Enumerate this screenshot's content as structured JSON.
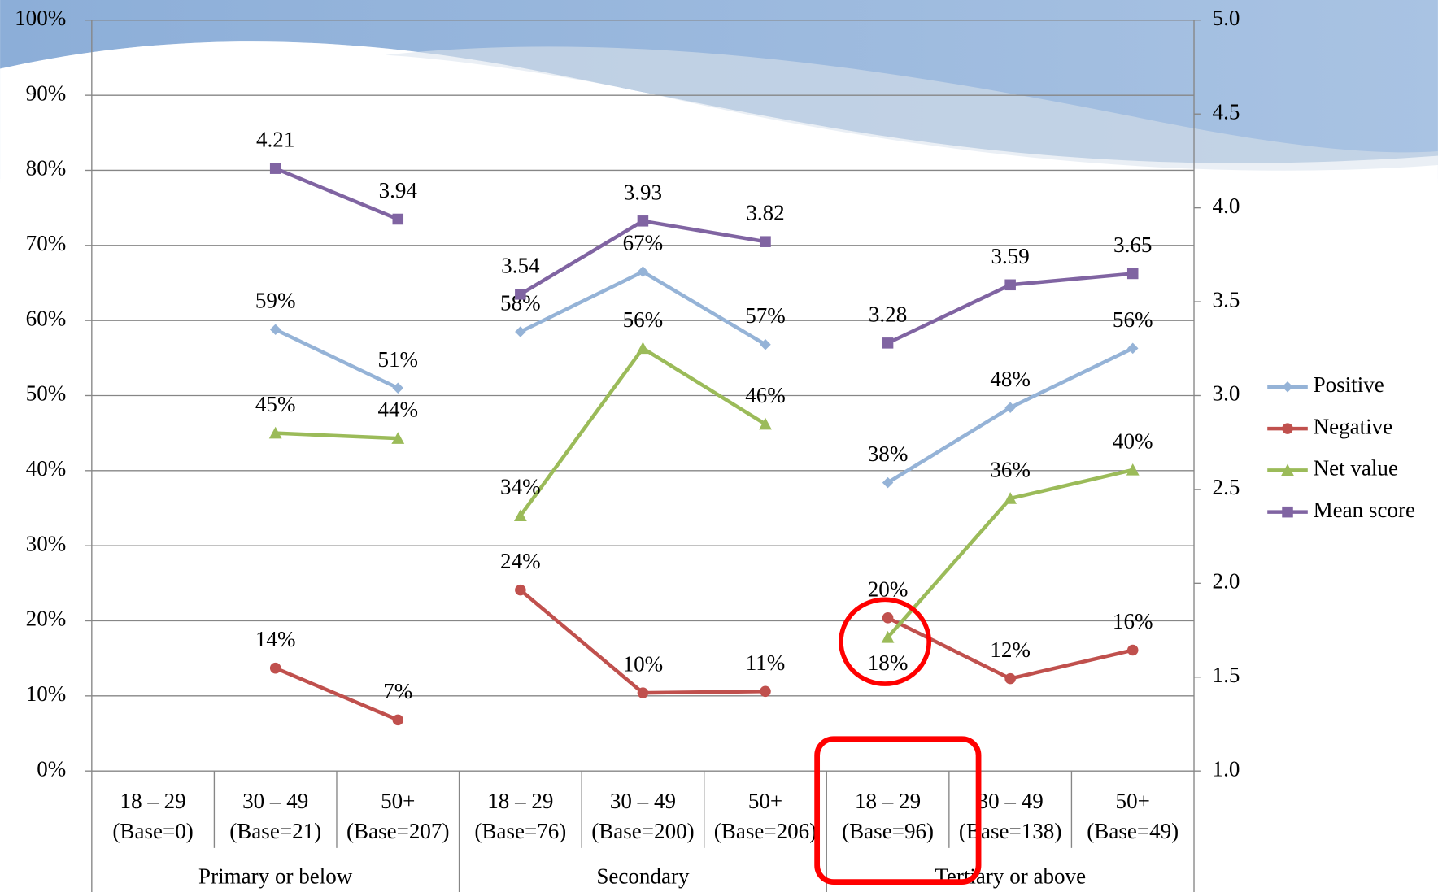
{
  "chart_data": {
    "type": "line",
    "categories": [
      "18 – 29",
      "30 – 49",
      "50+",
      "18 – 29",
      "30 – 49",
      "50+",
      "18 – 29",
      "30 – 49",
      "50+"
    ],
    "category_notes": [
      "(Base=0)",
      "(Base=21)",
      "(Base=207)",
      "(Base=76)",
      "(Base=200)",
      "(Base=206)",
      "(Base=96)",
      "(Base=138)",
      "(Base=49)"
    ],
    "groups": [
      "Primary or below",
      "Secondary",
      "Tertiary or above"
    ],
    "series": [
      {
        "name": "Positive",
        "color": "#95b3d7",
        "marker": "diamond",
        "values": [
          null,
          58.8,
          51.0,
          58.5,
          66.5,
          56.8,
          38.4,
          48.4,
          56.3
        ],
        "value_labels": [
          null,
          "59%",
          "51%",
          "58%",
          "67%",
          "57%",
          "38%",
          "48%",
          "56%"
        ]
      },
      {
        "name": "Negative",
        "color": "#c0504d",
        "marker": "circle",
        "values": [
          null,
          13.7,
          6.8,
          24.1,
          10.4,
          10.6,
          20.4,
          12.3,
          16.1
        ],
        "value_labels": [
          null,
          "14%",
          "7%",
          "24%",
          "10%",
          "11%",
          "20%",
          "12%",
          "16%"
        ]
      },
      {
        "name": "Net value",
        "color": "#9bbb59",
        "marker": "triangle",
        "values": [
          null,
          45.0,
          44.3,
          34.0,
          56.3,
          46.2,
          17.8,
          36.3,
          40.1
        ],
        "value_labels": [
          null,
          "45%",
          "44%",
          "34%",
          "56%",
          "46%",
          "18%",
          "36%",
          "40%"
        ]
      },
      {
        "name": "Mean score",
        "color": "#8064a2",
        "marker": "square",
        "axis": "y2",
        "values": [
          null,
          4.21,
          3.94,
          3.54,
          3.93,
          3.82,
          3.28,
          3.59,
          3.65
        ]
      }
    ],
    "ylim": [
      0,
      100
    ],
    "yticks": [
      {
        "value": 0,
        "label": "0%"
      },
      {
        "value": 10,
        "label": "10%"
      },
      {
        "value": 20,
        "label": "20%"
      },
      {
        "value": 30,
        "label": "30%"
      },
      {
        "value": 40,
        "label": "40%"
      },
      {
        "value": 50,
        "label": "50%"
      },
      {
        "value": 60,
        "label": "60%"
      },
      {
        "value": 70,
        "label": "70%"
      },
      {
        "value": 80,
        "label": "80%"
      },
      {
        "value": 90,
        "label": "90%"
      },
      {
        "value": 100,
        "label": "100%"
      }
    ],
    "y2lim": [
      1,
      5
    ],
    "y2ticks": [
      {
        "value": 1,
        "label": "1.0"
      },
      1.5,
      {
        "value": 2,
        "label": "2.0"
      },
      2.5,
      {
        "value": 3,
        "label": "3.0"
      },
      3.5,
      {
        "value": 4,
        "label": "4.0"
      },
      4.5,
      {
        "value": 5,
        "label": "5.0"
      }
    ],
    "grid": true,
    "legend": "right"
  }
}
